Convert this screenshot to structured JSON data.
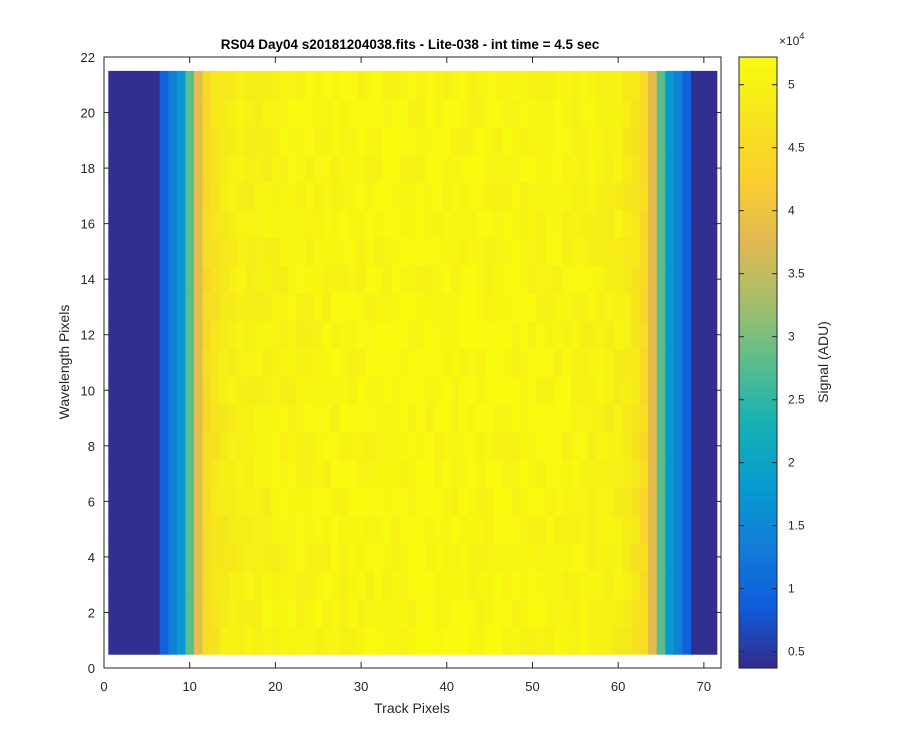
{
  "chart_data": {
    "type": "heatmap",
    "title": "RS04 Day04  s20181204038.fits - Lite-038 - int time = 4.5 sec",
    "xlabel": "Track Pixels",
    "ylabel": "Wavelength Pixels",
    "xlim": [
      0,
      72
    ],
    "ylim": [
      0,
      22
    ],
    "xticks": [
      "0",
      "10",
      "20",
      "30",
      "40",
      "50",
      "60",
      "70"
    ],
    "yticks": [
      "0",
      "2",
      "4",
      "6",
      "8",
      "10",
      "12",
      "14",
      "16",
      "18",
      "20",
      "22"
    ],
    "x": [
      1,
      2,
      3,
      4,
      5,
      6,
      7,
      8,
      9,
      10,
      11,
      12,
      13,
      14,
      15,
      16,
      17,
      18,
      19,
      20,
      21,
      22,
      23,
      24,
      25,
      26,
      27,
      28,
      29,
      30,
      31,
      32,
      33,
      34,
      35,
      36,
      37,
      38,
      39,
      40,
      41,
      42,
      43,
      44,
      45,
      46,
      47,
      48,
      49,
      50,
      51,
      52,
      53,
      54,
      55,
      56,
      57,
      58,
      59,
      60,
      61,
      62,
      63,
      64,
      65,
      66,
      67,
      68,
      69,
      70,
      71
    ],
    "y": [
      1,
      2,
      3,
      4,
      5,
      6,
      7,
      8,
      9,
      10,
      11,
      12,
      13,
      14,
      15,
      16,
      17,
      18,
      19,
      20,
      21
    ],
    "track_profile": [
      4200,
      4200,
      4200,
      4200,
      4200,
      4200,
      9500,
      14000,
      18000,
      28000,
      38500,
      45500,
      47500,
      48800,
      49300,
      49600,
      49800,
      50000,
      50200,
      50300,
      50400,
      50600,
      50700,
      50800,
      50800,
      50900,
      50900,
      51000,
      51000,
      51100,
      51100,
      51100,
      51200,
      51200,
      51200,
      51200,
      51300,
      51300,
      51300,
      51300,
      51300,
      51300,
      51200,
      51200,
      51200,
      51200,
      51100,
      51100,
      51000,
      51000,
      50900,
      50800,
      50800,
      50700,
      50600,
      50500,
      50300,
      50200,
      50000,
      49600,
      49000,
      47500,
      45000,
      38000,
      28000,
      18000,
      14000,
      9500,
      4200,
      4200,
      4200
    ],
    "colorbar": {
      "label": "Signal (ADU)",
      "exponent_label": "×10",
      "exponent_power": "4",
      "range": [
        3700,
        52200
      ],
      "ticks": [
        "0.5",
        "1",
        "1.5",
        "2",
        "2.5",
        "3",
        "3.5",
        "4",
        "4.5",
        "5"
      ],
      "tick_values": [
        5000,
        10000,
        15000,
        20000,
        25000,
        30000,
        35000,
        40000,
        45000,
        50000
      ]
    },
    "colormap": "parula"
  }
}
